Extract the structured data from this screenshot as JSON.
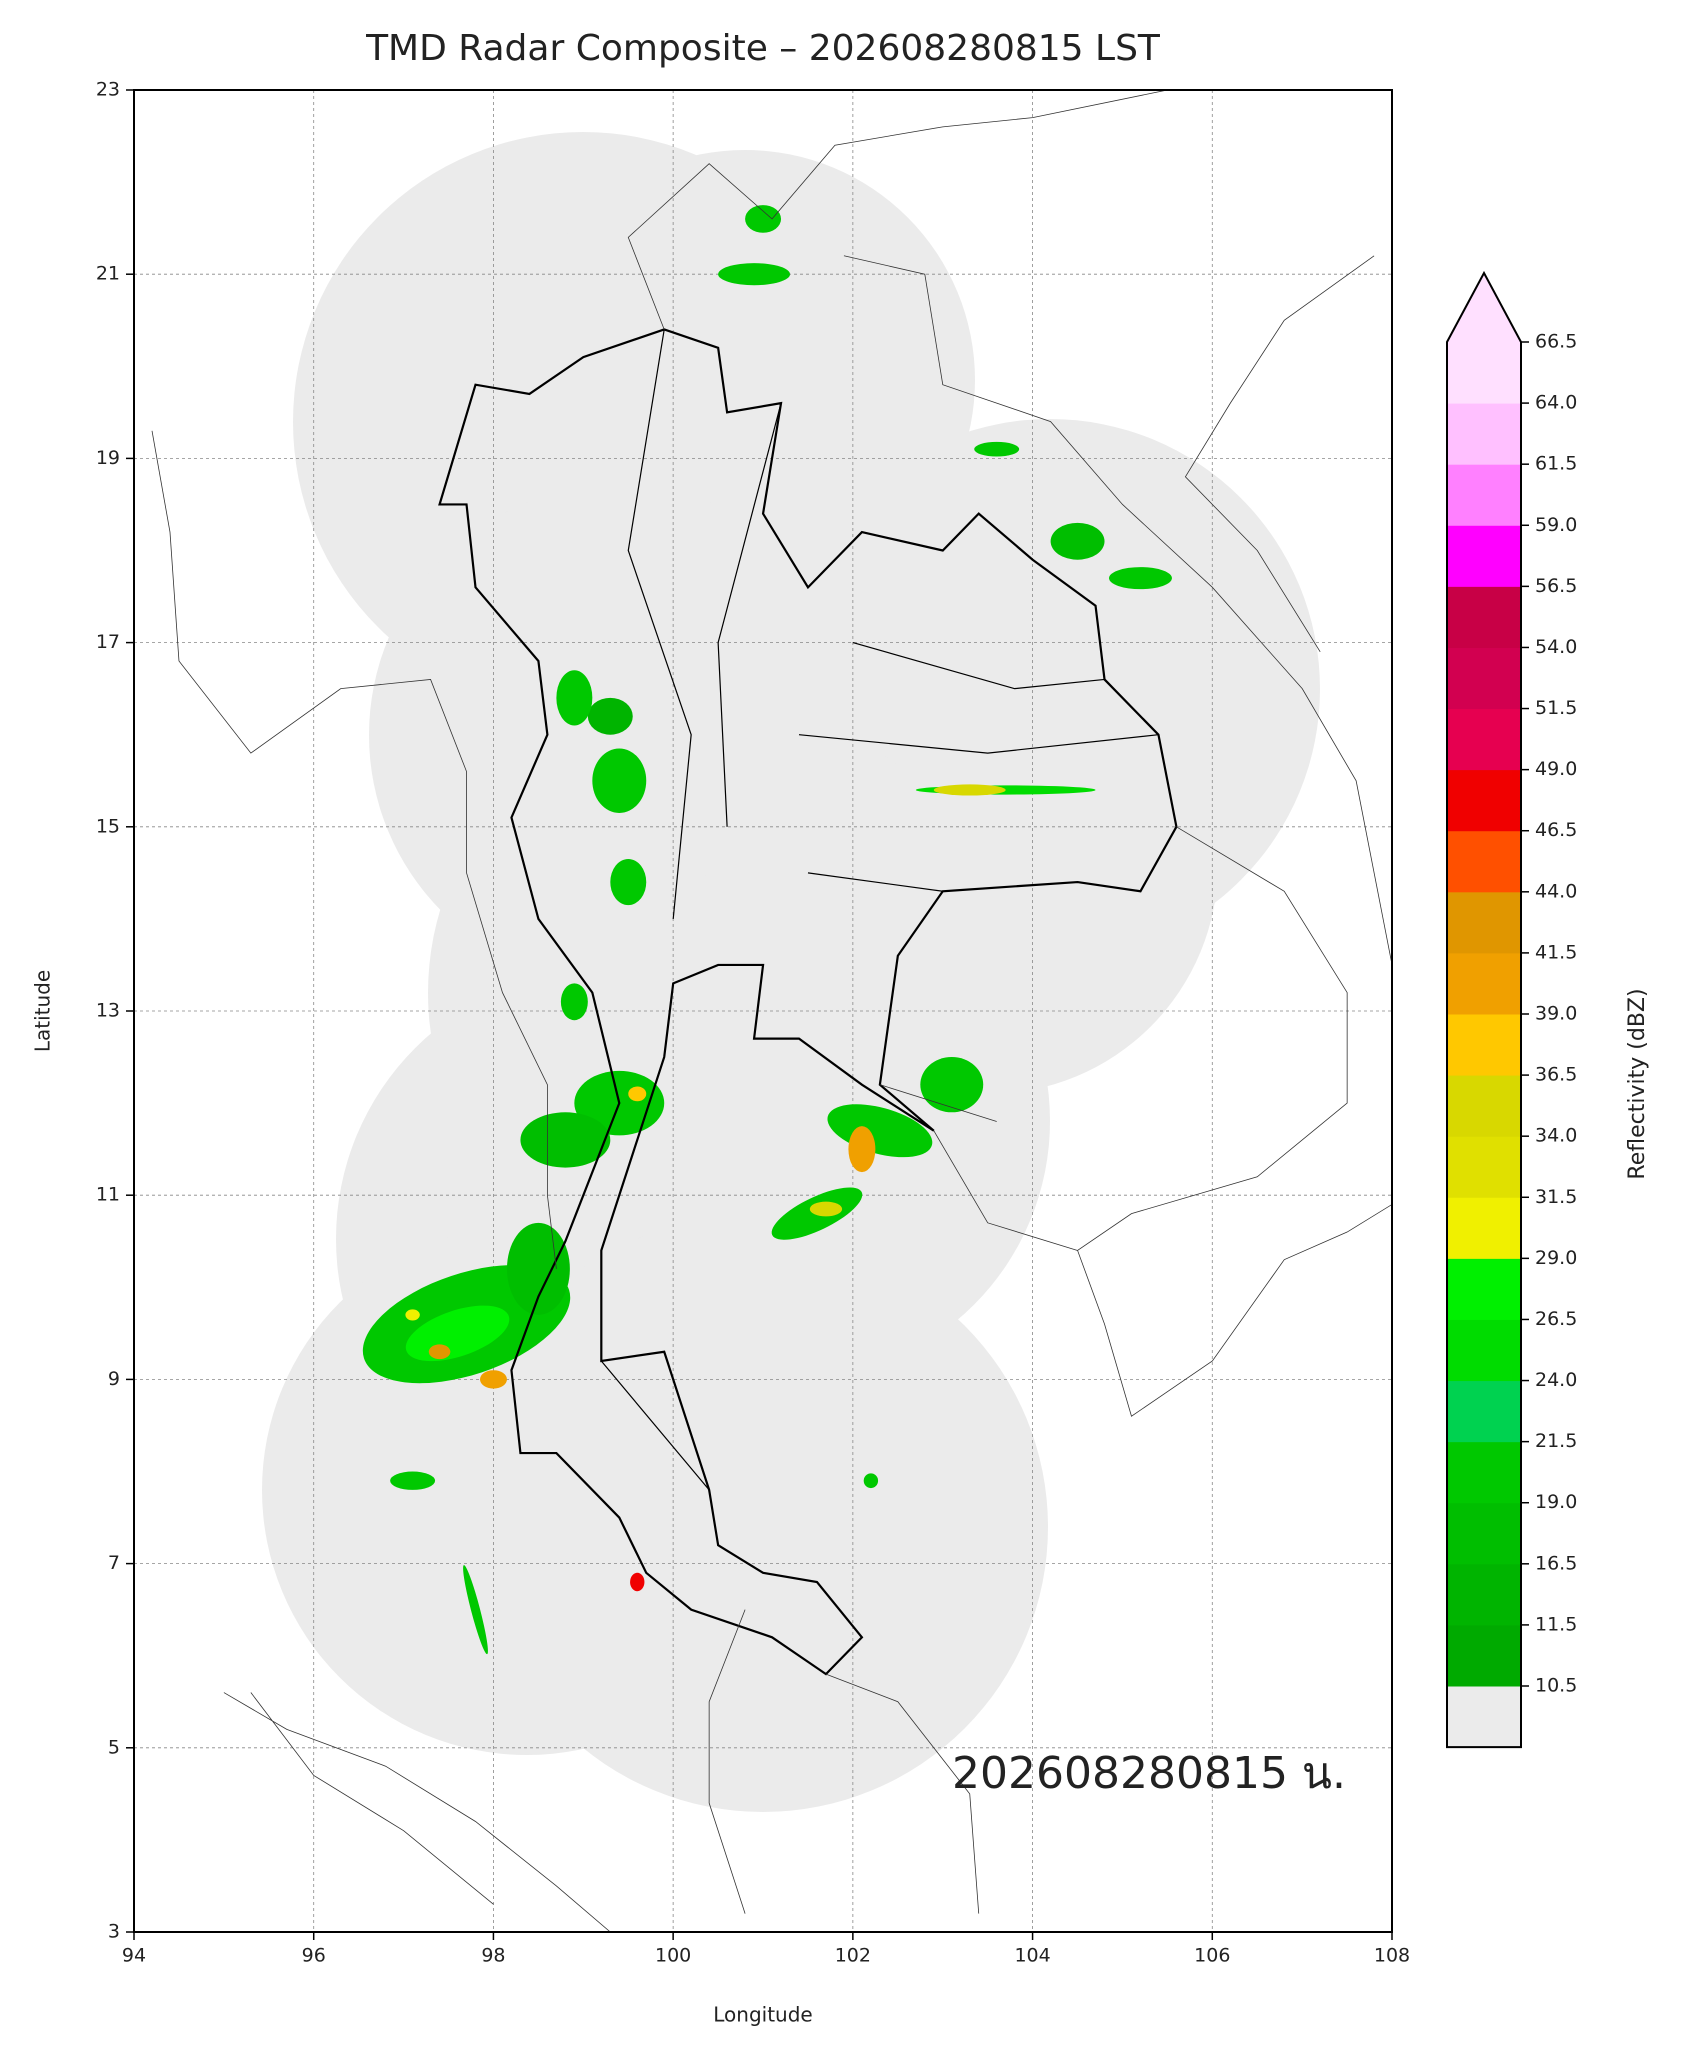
{
  "chart_data": {
    "type": "map",
    "title": "TMD Radar Composite – 202608280815 LST",
    "x_label": "Longitude",
    "y_label": "Latitude",
    "xlim": [
      94,
      108
    ],
    "ylim": [
      3,
      23
    ],
    "xticks": [
      94,
      96,
      98,
      100,
      102,
      104,
      106,
      108
    ],
    "yticks": [
      3,
      5,
      7,
      9,
      11,
      13,
      15,
      17,
      19,
      21,
      23
    ],
    "grid": true,
    "annotation": "202608280815 น.",
    "colorbar": {
      "label": "Reflectivity (dBZ)",
      "levels": [
        10.5,
        11.5,
        {
          "value": 16.5,
          "label": "16.5"
        },
        {
          "value": 19,
          "label": "19.0"
        },
        21.5,
        {
          "value": 24,
          "label": "24.0"
        },
        26.5,
        {
          "value": 29,
          "label": "29.0"
        },
        31.5,
        {
          "value": 34,
          "label": "34.0"
        },
        36.5,
        {
          "value": 39,
          "label": "39.0"
        },
        41.5,
        {
          "value": 44,
          "label": "44.0"
        },
        46.5,
        {
          "value": 49,
          "label": "49.0"
        },
        51.5,
        {
          "value": 54,
          "label": "54.0"
        },
        56.5,
        {
          "value": 59,
          "label": "59.0"
        },
        61.5,
        {
          "value": 64,
          "label": "64.0"
        },
        66.5
      ],
      "colors": [
        "#00aa00",
        "#00b400",
        "#00be00",
        "#00c800",
        "#00d250",
        "#00dc00",
        "#00f000",
        "#f0f000",
        "#e0e000",
        "#d8d800",
        "#ffc800",
        "#f0a000",
        "#e09600",
        "#ff5000",
        "#f00000",
        "#e60050",
        "#d20050",
        "#c80046",
        "#ff00ff",
        "#ff80ff",
        "#ffc0ff",
        "#ffe0ff"
      ],
      "under_color": "#ebebeb",
      "over_color": "#ffe0ff"
    }
  }
}
